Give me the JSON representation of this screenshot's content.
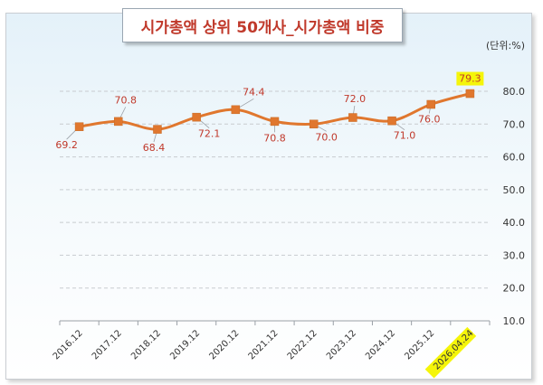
{
  "header": {
    "title": "시가총액 상위 50개사_시가총액 비중",
    "unit": "(단위:%)"
  },
  "colors": {
    "line": "#e0772e",
    "marker": "#e0772e",
    "label": "#c0392b",
    "highlight": "#f5f50a"
  },
  "chart_data": {
    "type": "line",
    "title": "시가총액 상위 50개사_시가총액 비중",
    "xlabel": "",
    "ylabel": "",
    "unit": "(단위:%)",
    "categories": [
      "2016.12",
      "2017.12",
      "2018.12",
      "2019.12",
      "2020.12",
      "2021.12",
      "2022.12",
      "2023.12",
      "2024.12",
      "2025.12",
      "2026.04.24"
    ],
    "values": [
      69.2,
      70.8,
      68.4,
      72.1,
      74.4,
      70.8,
      70.0,
      72.0,
      71.0,
      76.0,
      79.3
    ],
    "value_labels": [
      "69.2",
      "70.8",
      "68.4",
      "72.1",
      "74.4",
      "70.8",
      "70.0",
      "72.0",
      "71.0",
      "76.0",
      "79.3"
    ],
    "ylim": [
      10,
      80
    ],
    "yticks": [
      10,
      20,
      30,
      40,
      50,
      60,
      70,
      80
    ],
    "ytick_labels": [
      "10.0",
      "20.0",
      "30.0",
      "40.0",
      "50.0",
      "60.0",
      "70.0",
      "80.0"
    ],
    "grid": "horizontal dashed",
    "y_axis_position": "right",
    "smooth": true,
    "highlighted": [
      "79.3",
      "2026.04.24"
    ]
  }
}
